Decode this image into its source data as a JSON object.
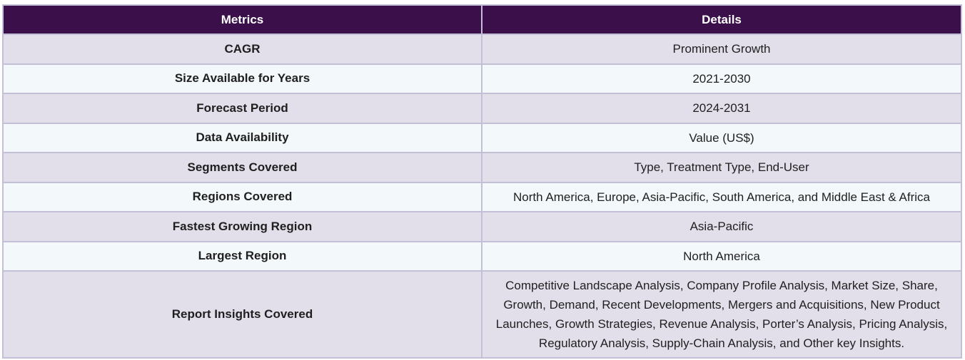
{
  "table": {
    "headers": [
      "Metrics",
      "Details"
    ],
    "rows": [
      {
        "metric": "CAGR",
        "detail": "Prominent Growth"
      },
      {
        "metric": "Size Available for Years",
        "detail": "2021-2030"
      },
      {
        "metric": "Forecast Period",
        "detail": "2024-2031"
      },
      {
        "metric": "Data Availability",
        "detail": "Value (US$)"
      },
      {
        "metric": "Segments Covered",
        "detail": "Type, Treatment Type, End-User"
      },
      {
        "metric": "Regions Covered",
        "detail": "North America, Europe, Asia-Pacific, South America, and Middle East & Africa"
      },
      {
        "metric": "Fastest Growing Region",
        "detail": "Asia-Pacific"
      },
      {
        "metric": "Largest Region",
        "detail": "North America"
      },
      {
        "metric": "Report Insights Covered",
        "detail": "Competitive Landscape Analysis, Company Profile Analysis, Market Size, Share, Growth, Demand, Recent Developments, Mergers and Acquisitions, New Product Launches, Growth Strategies, Revenue Analysis, Porter’s Analysis, Pricing Analysis, Regulatory Analysis, Supply-Chain Analysis, and Other key Insights."
      }
    ]
  },
  "colors": {
    "header_bg": "#3a0f4a",
    "row_odd_bg": "#e2dfeb",
    "row_even_bg": "#f3f8fb",
    "border": "#c2bfd6"
  }
}
